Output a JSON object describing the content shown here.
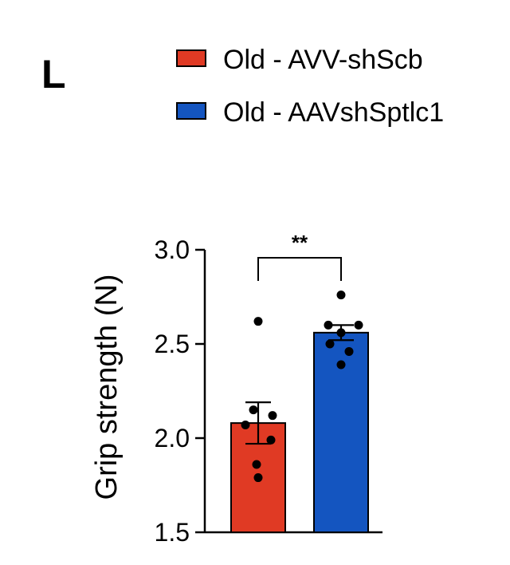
{
  "panel_label": "L",
  "colors": {
    "group1": "#e03a24",
    "group2": "#1455c0",
    "outline": "#000000"
  },
  "chart_data": {
    "type": "bar",
    "categories": [
      "Old - AVV-shScb",
      "Old - AAVshSptlc1"
    ],
    "values": [
      2.08,
      2.56
    ],
    "errors": [
      0.11,
      0.04
    ],
    "points": [
      [
        2.62,
        2.15,
        2.12,
        2.07,
        1.99,
        1.86,
        1.79
      ],
      [
        2.76,
        2.6,
        2.6,
        2.56,
        2.5,
        2.46,
        2.39
      ]
    ],
    "ylabel": "Grip strength (N)",
    "ylim": [
      1.5,
      3.0
    ],
    "yticks": [
      "1.5",
      "2.0",
      "2.5",
      "3.0"
    ],
    "significance": "**",
    "legend": [
      "Old - AVV-shScb",
      "Old - AAVshSptlc1"
    ],
    "legend_position": "top"
  }
}
